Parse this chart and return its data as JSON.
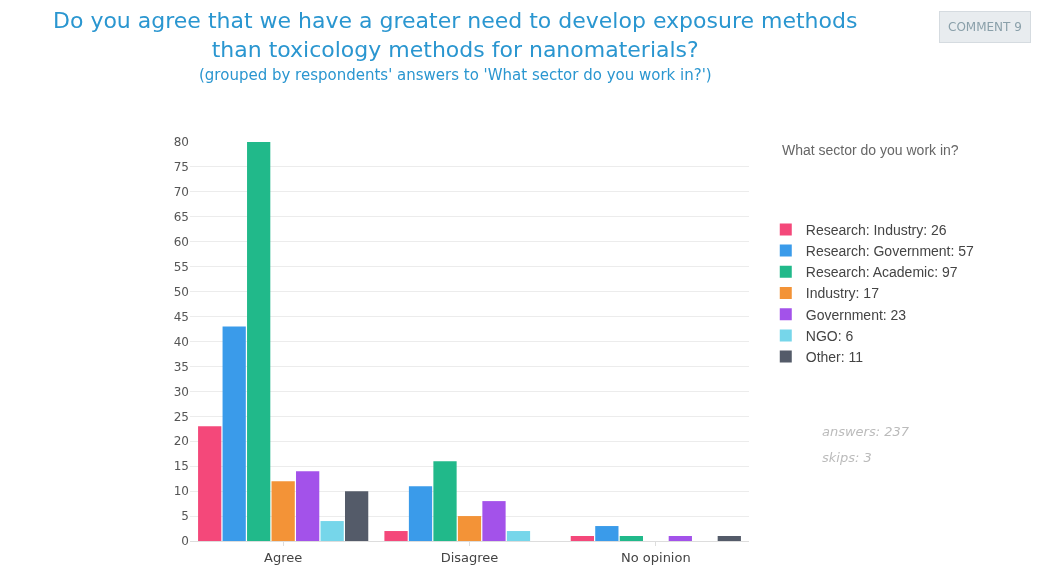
{
  "chart_data": {
    "type": "bar",
    "title": "Do you agree that we have a greater need to develop exposure methods than toxicology methods for nanomaterials?",
    "subtitle": "(grouped by respondents' answers to 'What sector do you work in?')",
    "legend_title": "What sector do you work in?",
    "categories": [
      "Agree",
      "Disagree",
      "No opinion"
    ],
    "series": [
      {
        "name": "Research: Industry: 26",
        "color": "#f4487a",
        "values": [
          23,
          2,
          1
        ]
      },
      {
        "name": "Research: Government: 57",
        "color": "#3a9bea",
        "values": [
          43,
          11,
          3
        ]
      },
      {
        "name": "Research: Academic: 97",
        "color": "#21b98a",
        "values": [
          80,
          16,
          1
        ]
      },
      {
        "name": "Industry: 17",
        "color": "#f39337",
        "values": [
          12,
          5,
          0
        ]
      },
      {
        "name": "Government: 23",
        "color": "#a352ea",
        "values": [
          14,
          8,
          1
        ]
      },
      {
        "name": "NGO: 6",
        "color": "#76d6ea",
        "values": [
          4,
          2,
          0
        ]
      },
      {
        "name": "Other: 11",
        "color": "#545b69",
        "values": [
          10,
          0,
          1
        ]
      }
    ],
    "ylim": [
      0,
      80
    ],
    "yticks": [
      0,
      5,
      10,
      15,
      20,
      25,
      30,
      35,
      40,
      45,
      50,
      55,
      60,
      65,
      70,
      75,
      80
    ],
    "grid": "y",
    "legend": "right",
    "annotations": [
      "answers: 237",
      "skips: 3",
      "COMMENT 9"
    ]
  }
}
